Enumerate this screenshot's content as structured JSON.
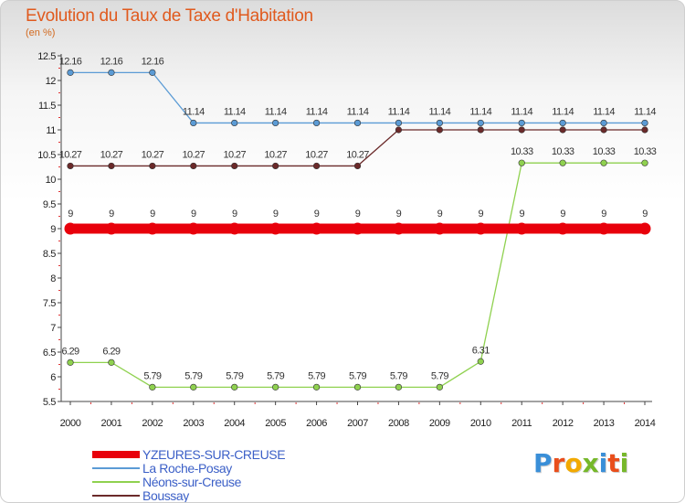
{
  "chart_data": {
    "type": "line",
    "title": "Evolution du Taux de Taxe d'Habitation",
    "ylabel": "(en %)",
    "ylim": [
      5.5,
      12.5
    ],
    "yticks": [
      "5.5",
      "6",
      "6.5",
      "7",
      "7.5",
      "8",
      "8.5",
      "9",
      "9.5",
      "10",
      "10.5",
      "11",
      "11.5",
      "12",
      "12.5"
    ],
    "categories": [
      "2000",
      "2001",
      "2002",
      "2003",
      "2004",
      "2005",
      "2006",
      "2007",
      "2008",
      "2009",
      "2010",
      "2011",
      "2012",
      "2013",
      "2014"
    ],
    "series": [
      {
        "name": "YZEURES-SUR-CREUSE",
        "color": "#e8000b",
        "values": [
          9,
          9,
          9,
          9,
          9,
          9,
          9,
          9,
          9,
          9,
          9,
          9,
          9,
          9,
          9
        ],
        "labels": [
          "9",
          "9",
          "9",
          "9",
          "9",
          "9",
          "9",
          "9",
          "9",
          "9",
          "9",
          "9",
          "9",
          "9",
          "9"
        ]
      },
      {
        "name": "La Roche-Posay",
        "color": "#5b9bd5",
        "values": [
          12.16,
          12.16,
          12.16,
          11.14,
          11.14,
          11.14,
          11.14,
          11.14,
          11.14,
          11.14,
          11.14,
          11.14,
          11.14,
          11.14,
          11.14
        ],
        "labels": [
          "12.16",
          "12.16",
          "12.16",
          "11.14",
          "11.14",
          "11.14",
          "11.14",
          "11.14",
          "11.14",
          "11.14",
          "11.14",
          "11.14",
          "11.14",
          "11.14",
          "11.14"
        ]
      },
      {
        "name": "Néons-sur-Creuse",
        "color": "#8fd14f",
        "values": [
          6.29,
          6.29,
          5.79,
          5.79,
          5.79,
          5.79,
          5.79,
          5.79,
          5.79,
          5.79,
          6.31,
          10.33,
          10.33,
          10.33,
          10.33
        ],
        "labels": [
          "6.29",
          "6.29",
          "5.79",
          "5.79",
          "5.79",
          "5.79",
          "5.79",
          "5.79",
          "5.79",
          "5.79",
          "6.31",
          "10.33",
          "10.33",
          "10.33",
          "10.33"
        ]
      },
      {
        "name": "Boussay",
        "color": "#6b2a2a",
        "values": [
          10.27,
          10.27,
          10.27,
          10.27,
          10.27,
          10.27,
          10.27,
          10.27,
          11,
          11,
          11,
          11,
          11,
          11,
          11
        ],
        "labels": [
          "10.27",
          "10.27",
          "10.27",
          "10.27",
          "10.27",
          "10.27",
          "10.27",
          "10.27",
          "",
          "",
          "",
          "",
          "",
          "",
          ""
        ]
      }
    ]
  },
  "logo": {
    "text": "Proxiti",
    "letter_colors": [
      "#3a8fd8",
      "#e94e1b",
      "#f2a900",
      "#76b82a",
      "#3a8fd8",
      "#e94e1b",
      "#76b82a"
    ]
  }
}
